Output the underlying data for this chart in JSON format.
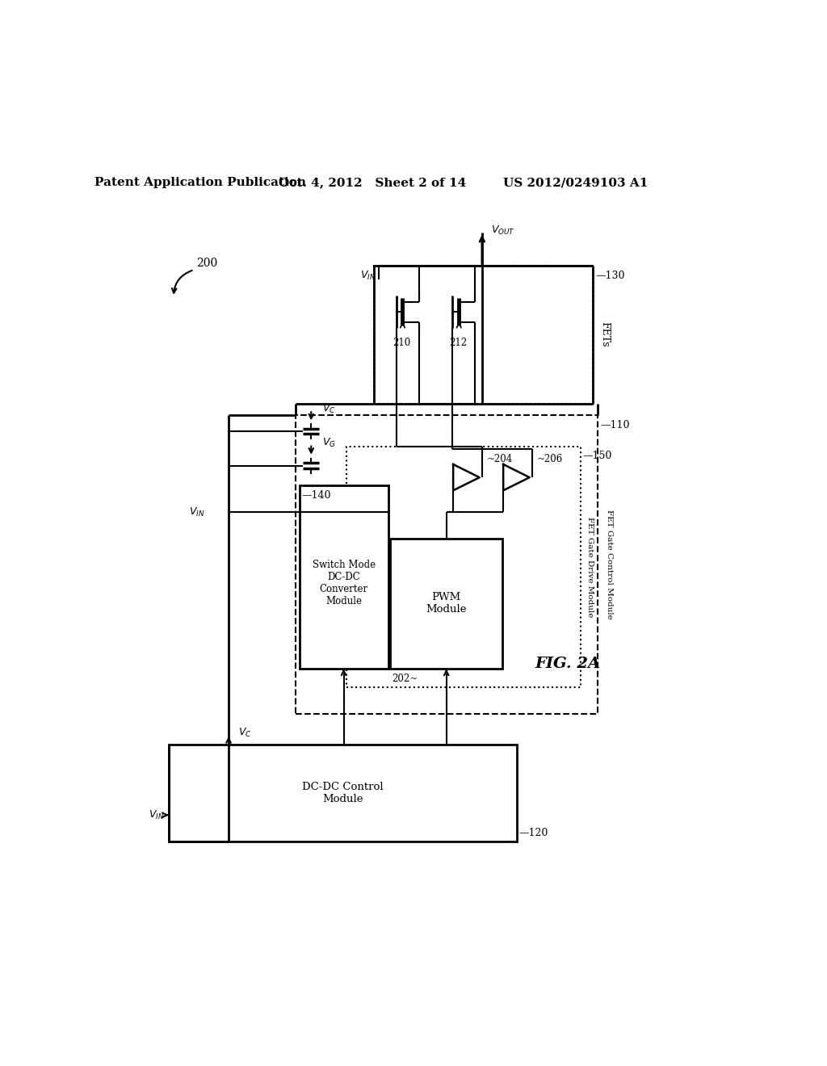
{
  "bg": "#ffffff",
  "lc": "#000000",
  "header_left": "Patent Application Publication",
  "header_mid": "Oct. 4, 2012   Sheet 2 of 14",
  "header_right": "US 2012/0249103 A1",
  "fig_label": "FIG. 2A",
  "ref_200": "200",
  "ref_110": "—110",
  "ref_120": "—120",
  "ref_130": "—130",
  "ref_140": "—140",
  "ref_150": "—150",
  "ref_202": "202",
  "ref_204": "204",
  "ref_206": "206",
  "ref_210": "210",
  "ref_212": "212",
  "lbl_switch": "Switch Mode\nDC-DC\nConverter\nModule",
  "lbl_pwm": "PWM\nModule",
  "lbl_fgd": "FET Gate Drive Module",
  "lbl_fgc": "FET Gate Control Module",
  "lbl_dc": "DC-DC Control\nModule",
  "lbl_fets": "FETs"
}
